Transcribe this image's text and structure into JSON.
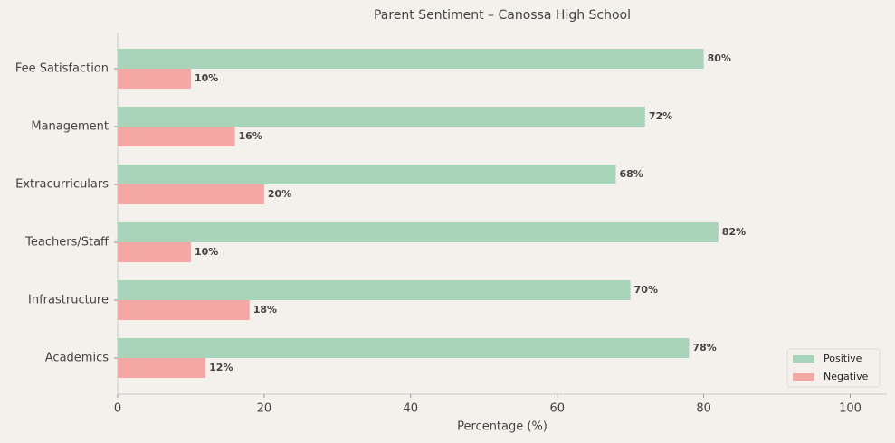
{
  "chart_data": {
    "type": "hbar",
    "title": "Parent Sentiment – Canossa High School",
    "xlabel": "Percentage (%)",
    "categories": [
      "Fee Satisfaction",
      "Management",
      "Extracurriculars",
      "Teachers/Staff",
      "Infrastructure",
      "Academics"
    ],
    "series": [
      {
        "name": "Positive",
        "color": "#a8d5ba",
        "values": [
          80,
          72,
          68,
          82,
          70,
          78
        ],
        "value_labels": [
          "80%",
          "72%",
          "68%",
          "82%",
          "70%",
          "78%"
        ]
      },
      {
        "name": "Negative",
        "color": "#f4a7a3",
        "values": [
          10,
          16,
          20,
          10,
          18,
          12
        ],
        "value_labels": [
          "10%",
          "16%",
          "20%",
          "10%",
          "18%",
          "12%"
        ]
      }
    ],
    "xlim": [
      0,
      105
    ],
    "xticks": [
      0,
      20,
      40,
      60,
      80,
      100
    ],
    "legend": "lower right"
  }
}
